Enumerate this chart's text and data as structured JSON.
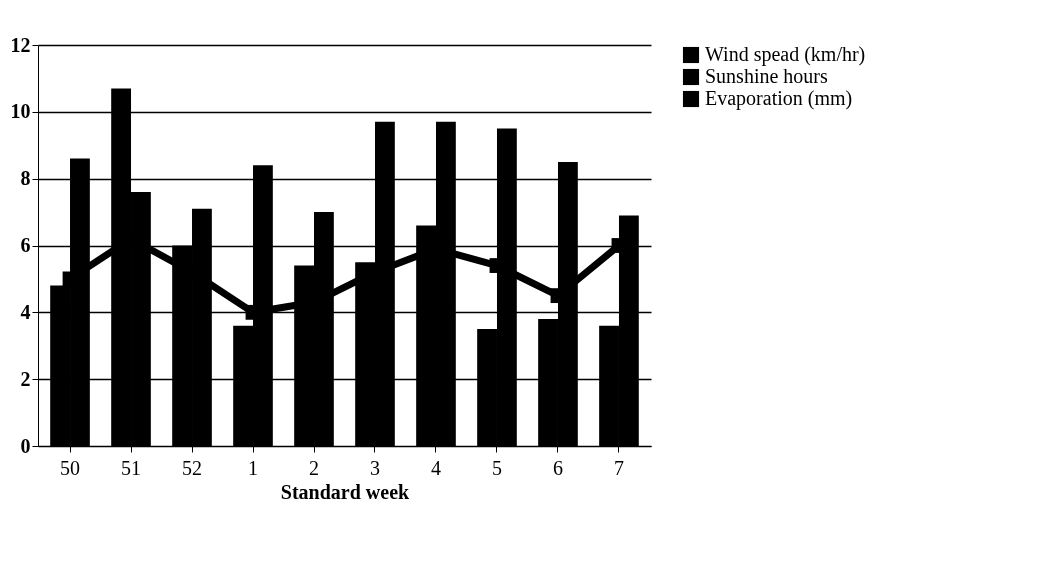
{
  "chart_data": {
    "type": "bar",
    "xlabel": "Standard week",
    "categories": [
      "50",
      "51",
      "52",
      "1",
      "2",
      "3",
      "4",
      "5",
      "6",
      "7"
    ],
    "series": [
      {
        "name": "Wind spead (km/hr)",
        "color": "#000000",
        "values": [
          4.8,
          10.7,
          6.0,
          3.6,
          5.4,
          5.5,
          6.6,
          3.5,
          3.8,
          3.6
        ]
      },
      {
        "name": "Sunshine hours",
        "color": "#000000",
        "values": [
          8.6,
          7.6,
          7.1,
          8.4,
          7.0,
          9.7,
          9.7,
          9.5,
          8.5,
          6.9
        ]
      },
      {
        "name": "Evaporation (mm)",
        "type": "line",
        "color": "#000000",
        "marker": "square",
        "values": [
          5.0,
          6.2,
          5.2,
          4.0,
          4.3,
          5.2,
          5.9,
          5.4,
          4.5,
          6.0
        ]
      }
    ],
    "ylim": [
      0,
      12
    ],
    "yticks": [
      0,
      2,
      4,
      6,
      8,
      10,
      12
    ],
    "grid": "y",
    "legend": "right"
  }
}
